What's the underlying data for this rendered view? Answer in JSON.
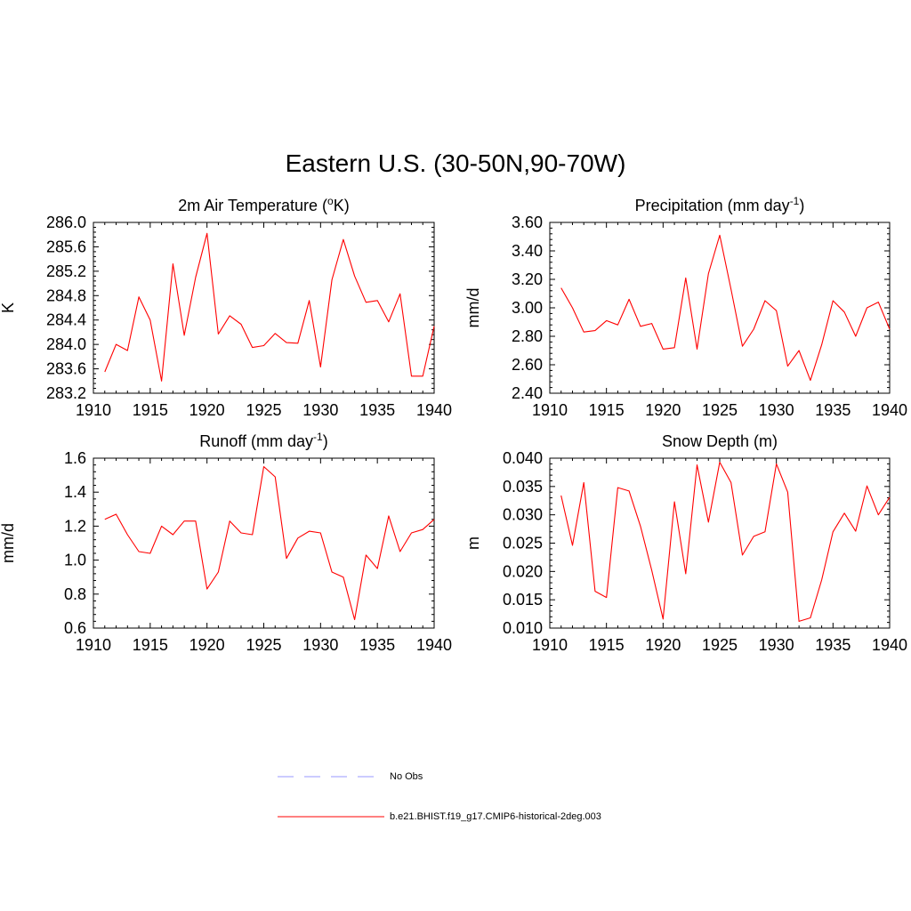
{
  "title": "Eastern U.S. (30-50N,90-70W)",
  "legend": [
    {
      "label": "No Obs",
      "color": "#9999ff",
      "style": "dashed"
    },
    {
      "label": "b.e21.BHIST.f19_g17.CMIP6-historical-2deg.003",
      "color": "#ff0000",
      "style": "solid"
    }
  ],
  "chart_data": [
    {
      "type": "line",
      "title": "2m Air Temperature (",
      "title_sup": "o",
      "title_tail": "K)",
      "ylabel": "K",
      "xlim": [
        1910,
        1940
      ],
      "ylim": [
        283.2,
        286.0
      ],
      "xticks": [
        1910,
        1915,
        1920,
        1925,
        1930,
        1935,
        1940
      ],
      "yticks": [
        "283.2",
        "283.6",
        "284.0",
        "284.4",
        "284.8",
        "285.2",
        "285.6",
        "286.0"
      ],
      "x": [
        1911,
        1912,
        1913,
        1914,
        1915,
        1916,
        1917,
        1918,
        1919,
        1920,
        1921,
        1922,
        1923,
        1924,
        1925,
        1926,
        1927,
        1928,
        1929,
        1930,
        1931,
        1932,
        1933,
        1934,
        1935,
        1936,
        1937,
        1938,
        1939,
        1940
      ],
      "series": [
        {
          "color": "#ff0000",
          "values": [
            283.55,
            284.0,
            283.9,
            284.78,
            284.4,
            283.4,
            285.32,
            284.15,
            285.1,
            285.82,
            284.17,
            284.47,
            284.33,
            283.95,
            283.98,
            284.18,
            284.03,
            284.02,
            284.72,
            283.63,
            285.06,
            285.72,
            285.12,
            284.69,
            284.72,
            284.37,
            284.83,
            283.48,
            283.48,
            284.3
          ]
        }
      ]
    },
    {
      "type": "line",
      "title": "Precipitation (mm day",
      "title_sup": "-1",
      "title_tail": ")",
      "ylabel": "mm/d",
      "xlim": [
        1910,
        1940
      ],
      "ylim": [
        2.4,
        3.6
      ],
      "xticks": [
        1910,
        1915,
        1920,
        1925,
        1930,
        1935,
        1940
      ],
      "yticks": [
        "2.40",
        "2.60",
        "2.80",
        "3.00",
        "3.20",
        "3.40",
        "3.60"
      ],
      "x": [
        1911,
        1912,
        1913,
        1914,
        1915,
        1916,
        1917,
        1918,
        1919,
        1920,
        1921,
        1922,
        1923,
        1924,
        1925,
        1926,
        1927,
        1928,
        1929,
        1930,
        1931,
        1932,
        1933,
        1934,
        1935,
        1936,
        1937,
        1938,
        1939,
        1940
      ],
      "series": [
        {
          "color": "#ff0000",
          "values": [
            3.14,
            3.0,
            2.83,
            2.84,
            2.91,
            2.88,
            3.06,
            2.87,
            2.89,
            2.71,
            2.72,
            3.21,
            2.71,
            3.24,
            3.51,
            3.13,
            2.73,
            2.85,
            3.05,
            2.98,
            2.59,
            2.7,
            2.49,
            2.74,
            3.05,
            2.97,
            2.8,
            3.0,
            3.04,
            2.85
          ]
        }
      ]
    },
    {
      "type": "line",
      "title": "Runoff (mm day",
      "title_sup": "-1",
      "title_tail": ")",
      "ylabel": "mm/d",
      "xlim": [
        1910,
        1940
      ],
      "ylim": [
        0.6,
        1.6
      ],
      "xticks": [
        1910,
        1915,
        1920,
        1925,
        1930,
        1935,
        1940
      ],
      "yticks": [
        "0.6",
        "0.8",
        "1.0",
        "1.2",
        "1.4",
        "1.6"
      ],
      "x": [
        1911,
        1912,
        1913,
        1914,
        1915,
        1916,
        1917,
        1918,
        1919,
        1920,
        1921,
        1922,
        1923,
        1924,
        1925,
        1926,
        1927,
        1928,
        1929,
        1930,
        1931,
        1932,
        1933,
        1934,
        1935,
        1936,
        1937,
        1938,
        1939,
        1940
      ],
      "series": [
        {
          "color": "#ff0000",
          "values": [
            1.24,
            1.27,
            1.15,
            1.05,
            1.04,
            1.2,
            1.15,
            1.23,
            1.23,
            0.83,
            0.93,
            1.23,
            1.16,
            1.15,
            1.55,
            1.49,
            1.01,
            1.13,
            1.17,
            1.16,
            0.93,
            0.9,
            0.65,
            1.03,
            0.95,
            1.26,
            1.05,
            1.16,
            1.18,
            1.24
          ]
        }
      ]
    },
    {
      "type": "line",
      "title": "Snow Depth (m)",
      "title_sup": "",
      "title_tail": "",
      "ylabel": "m",
      "xlim": [
        1910,
        1940
      ],
      "ylim": [
        0.01,
        0.04
      ],
      "xticks": [
        1910,
        1915,
        1920,
        1925,
        1930,
        1935,
        1940
      ],
      "yticks": [
        "0.010",
        "0.015",
        "0.020",
        "0.025",
        "0.030",
        "0.035",
        "0.040"
      ],
      "x": [
        1911,
        1912,
        1913,
        1914,
        1915,
        1916,
        1917,
        1918,
        1919,
        1920,
        1921,
        1922,
        1923,
        1924,
        1925,
        1926,
        1927,
        1928,
        1929,
        1930,
        1931,
        1932,
        1933,
        1934,
        1935,
        1936,
        1937,
        1938,
        1939,
        1940
      ],
      "series": [
        {
          "color": "#ff0000",
          "values": [
            0.0334,
            0.0246,
            0.0357,
            0.0165,
            0.0154,
            0.0348,
            0.0342,
            0.028,
            0.0202,
            0.0116,
            0.0323,
            0.0196,
            0.0388,
            0.0287,
            0.0393,
            0.0357,
            0.0229,
            0.0262,
            0.027,
            0.039,
            0.034,
            0.0112,
            0.0118,
            0.0185,
            0.027,
            0.0303,
            0.0271,
            0.0351,
            0.03,
            0.0331
          ]
        }
      ]
    }
  ]
}
